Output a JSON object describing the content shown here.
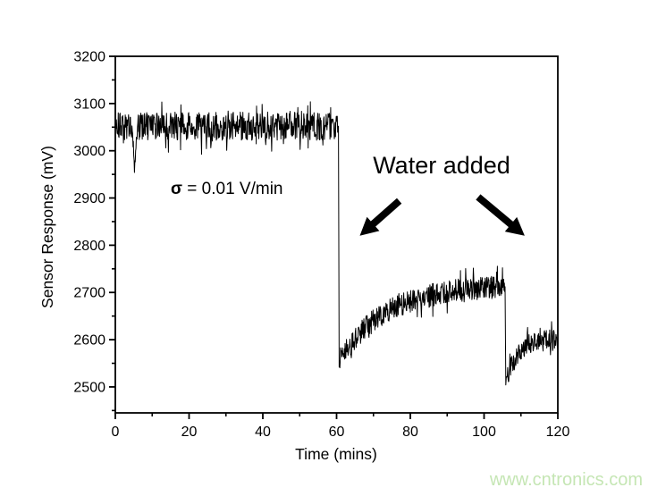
{
  "page": {
    "background": "#ffffff"
  },
  "chart_data": {
    "type": "line",
    "title": "",
    "xlabel": "Time (mins)",
    "ylabel": "Sensor Response (mV)",
    "xlim": [
      0,
      120
    ],
    "ylim": [
      2445,
      3200
    ],
    "x_major_ticks": [
      0,
      20,
      40,
      60,
      80,
      100,
      120
    ],
    "x_minor_step": 10,
    "y_major_ticks": [
      2500,
      2600,
      2700,
      2800,
      2900,
      3000,
      3100,
      3200
    ],
    "y_minor_step": 50,
    "grid": false,
    "legend": null,
    "line_color": "#000000",
    "axis_color": "#000000",
    "noise_seed": 20,
    "series": [
      {
        "name": "sensor-response",
        "segments": [
          {
            "shape": "flat",
            "t0": 0,
            "t1": 60.5,
            "v0": 3052,
            "v1": 3052,
            "noise": 30,
            "spikes": [
              {
                "t": 5.2,
                "dv": -72
              }
            ]
          },
          {
            "shape": "drop",
            "t0": 60.5,
            "t1": 60.7,
            "v0": 3052,
            "v1": 2542,
            "noise": 0
          },
          {
            "shape": "rise-saturating",
            "t0": 60.7,
            "t1": 105.7,
            "v0": 2556,
            "v1": 2712,
            "rate": 0.08,
            "noise": 24
          },
          {
            "shape": "drop",
            "t0": 105.7,
            "t1": 105.9,
            "v0": 2712,
            "v1": 2505,
            "noise": 0
          },
          {
            "shape": "rise-saturating",
            "t0": 105.9,
            "t1": 120,
            "v0": 2512,
            "v1": 2602,
            "rate": 0.3,
            "noise": 20
          }
        ]
      }
    ],
    "annotations": {
      "sigma": {
        "symbol": "σ",
        "rest": " = 0.01 V/min"
      },
      "water_added": {
        "text": "Water added"
      },
      "arrows": [
        {
          "x1": 77.0,
          "y1": 2894,
          "x2": 66.3,
          "y2": 2820
        },
        {
          "x1": 98.4,
          "y1": 2902,
          "x2": 111.0,
          "y2": 2820
        }
      ]
    }
  },
  "watermark": {
    "text": "www.cntronics.com",
    "color": "#c5e6b4"
  }
}
